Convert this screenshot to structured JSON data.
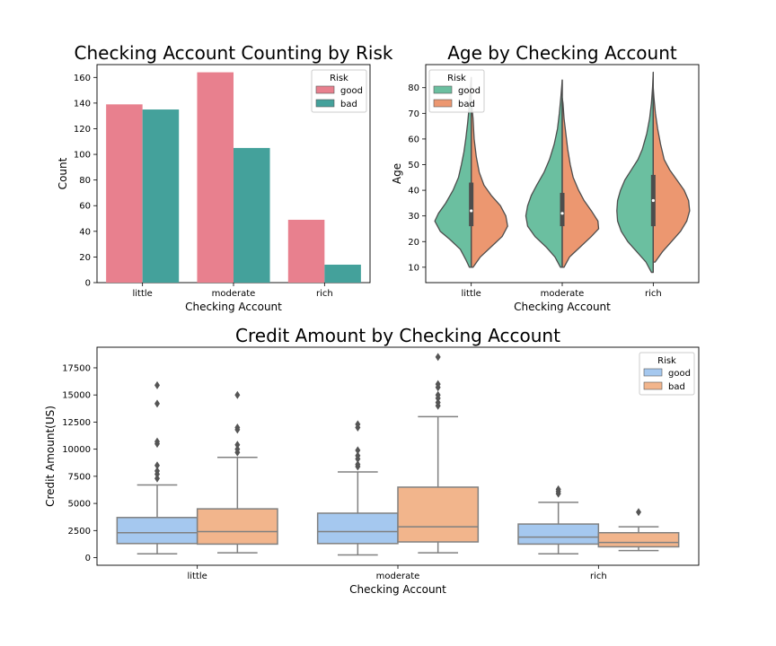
{
  "chart_data": [
    {
      "type": "bar",
      "title": "Checking Account Counting by Risk",
      "xlabel": "Checking Account",
      "ylabel": "Count",
      "ylim": [
        0,
        170
      ],
      "yticks": [
        0,
        20,
        40,
        60,
        80,
        100,
        120,
        140,
        160
      ],
      "categories": [
        "little",
        "moderate",
        "rich"
      ],
      "legend": {
        "title": "Risk",
        "position": "top-right"
      },
      "series": [
        {
          "name": "good",
          "color": "#e8808e",
          "values": [
            139,
            164,
            49
          ]
        },
        {
          "name": "bad",
          "color": "#44a19b",
          "values": [
            135,
            105,
            14
          ]
        }
      ]
    },
    {
      "type": "violin",
      "title": "Age by Checking Account",
      "xlabel": "Checking Account",
      "ylabel": "Age",
      "ylim": [
        4,
        89
      ],
      "yticks": [
        10,
        20,
        30,
        40,
        50,
        60,
        70,
        80
      ],
      "categories": [
        "little",
        "moderate",
        "rich"
      ],
      "legend": {
        "title": "Risk",
        "position": "top-left"
      },
      "split": true,
      "series": [
        {
          "name": "good",
          "color": "#6bbfa0"
        },
        {
          "name": "bad",
          "color": "#ec9770"
        }
      ],
      "groups": [
        {
          "category": "little",
          "range": [
            10,
            84
          ],
          "q1": 26,
          "median": 32,
          "q3": 43,
          "good_profile": [
            [
              10,
              0.05
            ],
            [
              13,
              0.15
            ],
            [
              17,
              0.3
            ],
            [
              21,
              0.6
            ],
            [
              24,
              0.85
            ],
            [
              28,
              1.0
            ],
            [
              31,
              0.9
            ],
            [
              35,
              0.7
            ],
            [
              40,
              0.5
            ],
            [
              45,
              0.35
            ],
            [
              50,
              0.27
            ],
            [
              55,
              0.2
            ],
            [
              60,
              0.15
            ],
            [
              66,
              0.1
            ],
            [
              72,
              0.06
            ],
            [
              78,
              0.03
            ],
            [
              84,
              0.0
            ]
          ],
          "bad_profile": [
            [
              10,
              0.05
            ],
            [
              14,
              0.25
            ],
            [
              18,
              0.55
            ],
            [
              22,
              0.85
            ],
            [
              26,
              1.0
            ],
            [
              30,
              0.95
            ],
            [
              34,
              0.8
            ],
            [
              38,
              0.55
            ],
            [
              42,
              0.35
            ],
            [
              47,
              0.22
            ],
            [
              53,
              0.14
            ],
            [
              60,
              0.08
            ],
            [
              68,
              0.05
            ],
            [
              74,
              0.01
            ],
            [
              75,
              0.0
            ]
          ]
        },
        {
          "category": "moderate",
          "range": [
            10,
            83
          ],
          "q1": 26,
          "median": 31,
          "q3": 39,
          "good_profile": [
            [
              10,
              0.05
            ],
            [
              14,
              0.2
            ],
            [
              18,
              0.45
            ],
            [
              22,
              0.75
            ],
            [
              26,
              0.95
            ],
            [
              30,
              1.0
            ],
            [
              34,
              0.95
            ],
            [
              38,
              0.85
            ],
            [
              42,
              0.7
            ],
            [
              47,
              0.5
            ],
            [
              52,
              0.35
            ],
            [
              58,
              0.22
            ],
            [
              64,
              0.13
            ],
            [
              70,
              0.08
            ],
            [
              76,
              0.04
            ],
            [
              83,
              0.0
            ]
          ],
          "bad_profile": [
            [
              10,
              0.05
            ],
            [
              14,
              0.2
            ],
            [
              18,
              0.5
            ],
            [
              22,
              0.8
            ],
            [
              25,
              1.0
            ],
            [
              28,
              0.98
            ],
            [
              32,
              0.8
            ],
            [
              36,
              0.6
            ],
            [
              40,
              0.45
            ],
            [
              45,
              0.3
            ],
            [
              50,
              0.22
            ],
            [
              56,
              0.15
            ],
            [
              62,
              0.1
            ],
            [
              68,
              0.05
            ],
            [
              74,
              0.02
            ],
            [
              76,
              0.0
            ]
          ]
        },
        {
          "category": "rich",
          "range": [
            8,
            86
          ],
          "q1": 26,
          "median": 36,
          "q3": 46,
          "good_profile": [
            [
              8,
              0.05
            ],
            [
              12,
              0.2
            ],
            [
              16,
              0.45
            ],
            [
              20,
              0.7
            ],
            [
              24,
              0.88
            ],
            [
              28,
              0.98
            ],
            [
              32,
              1.0
            ],
            [
              36,
              0.98
            ],
            [
              40,
              0.9
            ],
            [
              44,
              0.78
            ],
            [
              48,
              0.6
            ],
            [
              52,
              0.42
            ],
            [
              56,
              0.3
            ],
            [
              62,
              0.18
            ],
            [
              68,
              0.1
            ],
            [
              74,
              0.05
            ],
            [
              80,
              0.02
            ],
            [
              86,
              0.0
            ]
          ],
          "bad_profile": [
            [
              12,
              0.05
            ],
            [
              16,
              0.25
            ],
            [
              20,
              0.5
            ],
            [
              24,
              0.75
            ],
            [
              28,
              0.92
            ],
            [
              32,
              1.0
            ],
            [
              36,
              0.97
            ],
            [
              40,
              0.85
            ],
            [
              44,
              0.65
            ],
            [
              48,
              0.45
            ],
            [
              52,
              0.3
            ],
            [
              58,
              0.2
            ],
            [
              64,
              0.12
            ],
            [
              70,
              0.06
            ],
            [
              76,
              0.02
            ],
            [
              80,
              0.0
            ]
          ]
        }
      ]
    },
    {
      "type": "box",
      "title": "Credit Amount by Checking Account",
      "xlabel": "Checking Account",
      "ylabel": "Credit Amount(US)",
      "ylim": [
        -700,
        19400
      ],
      "yticks": [
        0,
        2500,
        5000,
        7500,
        10000,
        12500,
        15000,
        17500
      ],
      "categories": [
        "little",
        "moderate",
        "rich"
      ],
      "legend": {
        "title": "Risk",
        "position": "top-right"
      },
      "series": [
        {
          "name": "good",
          "color": "#a5c8ef",
          "boxes": [
            {
              "whisker_low": 350,
              "q1": 1300,
              "median": 2300,
              "q3": 3700,
              "whisker_high": 6700,
              "outliers": [
                7300,
                7700,
                8000,
                8500,
                10500,
                10700,
                14200,
                15900
              ]
            },
            {
              "whisker_low": 250,
              "q1": 1300,
              "median": 2400,
              "q3": 4100,
              "whisker_high": 7900,
              "outliers": [
                8400,
                8600,
                9100,
                9400,
                9900,
                12000,
                12300
              ]
            },
            {
              "whisker_low": 350,
              "q1": 1250,
              "median": 1900,
              "q3": 3100,
              "whisker_high": 5100,
              "outliers": [
                5900,
                6100,
                6300
              ]
            }
          ]
        },
        {
          "name": "bad",
          "color": "#f2b58c",
          "boxes": [
            {
              "whisker_low": 450,
              "q1": 1250,
              "median": 2400,
              "q3": 4500,
              "whisker_high": 9250,
              "outliers": [
                9700,
                10000,
                10400,
                11800,
                12000,
                15000
              ]
            },
            {
              "whisker_low": 450,
              "q1": 1450,
              "median": 2850,
              "q3": 6500,
              "whisker_high": 13000,
              "outliers": [
                14000,
                14300,
                14700,
                15000,
                15700,
                16000,
                18500
              ]
            },
            {
              "whisker_low": 650,
              "q1": 1000,
              "median": 1400,
              "q3": 2300,
              "whisker_high": 2850,
              "outliers": [
                4200
              ]
            }
          ]
        }
      ]
    }
  ]
}
